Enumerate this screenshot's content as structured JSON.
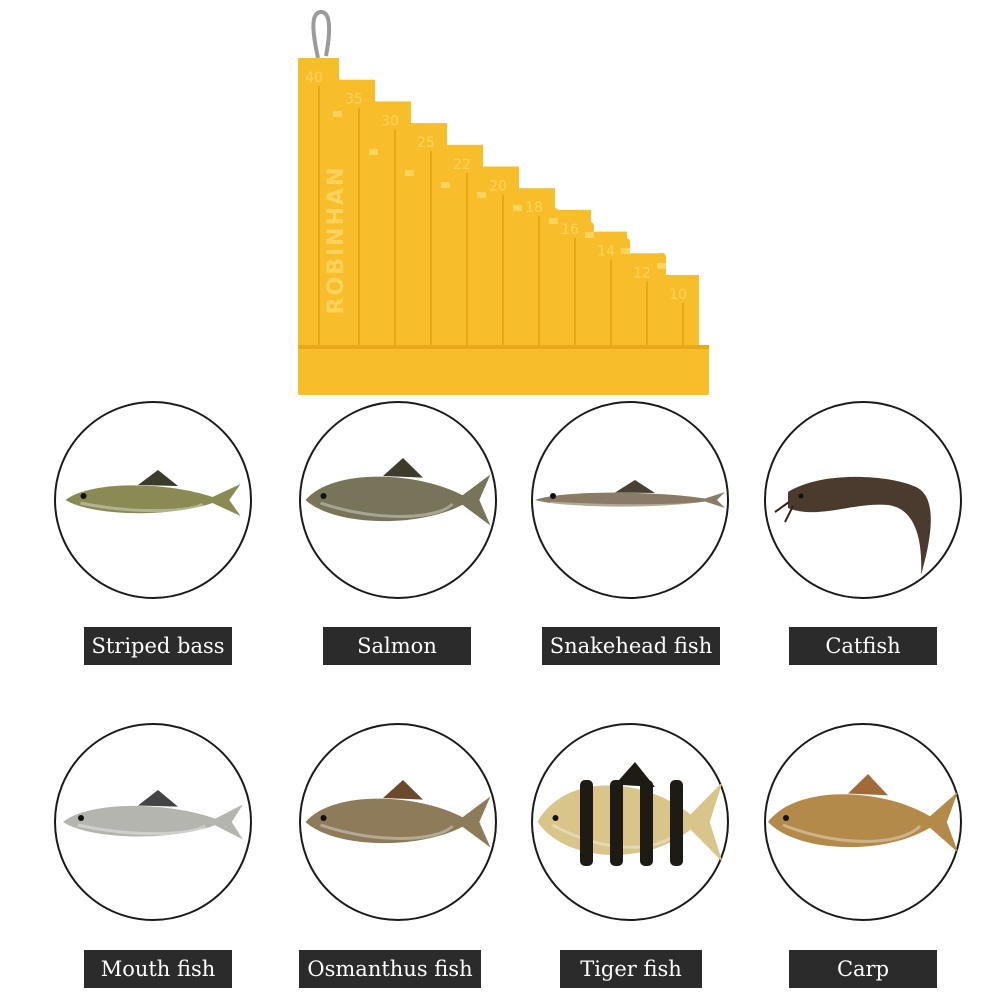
{
  "product": {
    "brand_text": "ROBINHAN",
    "scale_marks": [
      "40",
      "35",
      "30",
      "25",
      "22",
      "20",
      "18",
      "16",
      "14",
      "12",
      "10"
    ],
    "colors": {
      "plastic": "#f7bd2b",
      "plastic_dark": "#e9a81a",
      "plastic_light": "#fdd35c",
      "metal": "#9b9b9b"
    }
  },
  "fish_grid": {
    "items": [
      {
        "label": "Striped bass",
        "icon": "fish-icon",
        "body_color": "#8a8a55",
        "fin_color": "#3b3b2a"
      },
      {
        "label": "Salmon",
        "icon": "fish-icon",
        "body_color": "#77745a",
        "fin_color": "#3e3b2c"
      },
      {
        "label": "Snakehead fish",
        "icon": "fish-icon",
        "body_color": "#8a7c64",
        "fin_color": "#4a4034"
      },
      {
        "label": "Catfish",
        "icon": "fish-icon",
        "body_color": "#4b3b2e",
        "fin_color": "#2e241b"
      },
      {
        "label": "Mouth fish",
        "icon": "fish-icon",
        "body_color": "#b5b5b0",
        "fin_color": "#444444"
      },
      {
        "label": "Osmanthus fish",
        "icon": "fish-icon",
        "body_color": "#8d7b5a",
        "fin_color": "#6a4a2a"
      },
      {
        "label": "Tiger fish",
        "icon": "fish-icon",
        "body_color": "#d9c48a",
        "fin_color": "#1e1a14"
      },
      {
        "label": "Carp",
        "icon": "fish-icon",
        "body_color": "#b38a4a",
        "fin_color": "#a06a3a"
      }
    ]
  }
}
